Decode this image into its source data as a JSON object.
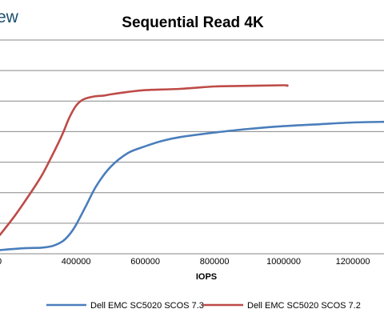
{
  "brand": {
    "text": "ew"
  },
  "chart_data": {
    "type": "line",
    "title": "Sequential Read 4K",
    "xlabel": "IOPS",
    "ylabel": "",
    "x_ticks": [
      400000,
      600000,
      800000,
      1000000,
      1200000
    ],
    "x_tick_labels": [
      "400000",
      "600000",
      "800000",
      "1000000",
      "1200000"
    ],
    "xlim": [
      180000,
      1290000
    ],
    "ylim": [
      0,
      7
    ],
    "grid": true,
    "legend_position": "bottom",
    "series": [
      {
        "name": "Dell EMC SC5020 SCOS 7.3",
        "color": "#4a7ebb",
        "points": [
          [
            180000,
            0.12
          ],
          [
            250000,
            0.18
          ],
          [
            300000,
            0.2
          ],
          [
            330000,
            0.25
          ],
          [
            360000,
            0.4
          ],
          [
            380000,
            0.62
          ],
          [
            400000,
            0.95
          ],
          [
            430000,
            1.6
          ],
          [
            460000,
            2.25
          ],
          [
            500000,
            2.85
          ],
          [
            550000,
            3.3
          ],
          [
            600000,
            3.52
          ],
          [
            650000,
            3.7
          ],
          [
            700000,
            3.82
          ],
          [
            800000,
            3.97
          ],
          [
            900000,
            4.09
          ],
          [
            1000000,
            4.18
          ],
          [
            1100000,
            4.24
          ],
          [
            1200000,
            4.3
          ],
          [
            1290000,
            4.32
          ]
        ]
      },
      {
        "name": "Dell EMC SC5020 SCOS 7.2",
        "color": "#be4b48",
        "points": [
          [
            180000,
            0.62
          ],
          [
            220000,
            1.2
          ],
          [
            260000,
            1.85
          ],
          [
            300000,
            2.55
          ],
          [
            330000,
            3.2
          ],
          [
            360000,
            3.9
          ],
          [
            380000,
            4.45
          ],
          [
            400000,
            4.85
          ],
          [
            420000,
            5.05
          ],
          [
            450000,
            5.15
          ],
          [
            480000,
            5.18
          ],
          [
            500000,
            5.22
          ],
          [
            550000,
            5.3
          ],
          [
            600000,
            5.36
          ],
          [
            700000,
            5.4
          ],
          [
            800000,
            5.48
          ],
          [
            900000,
            5.5
          ],
          [
            1000000,
            5.52
          ],
          [
            1010000,
            5.5
          ]
        ]
      }
    ]
  }
}
